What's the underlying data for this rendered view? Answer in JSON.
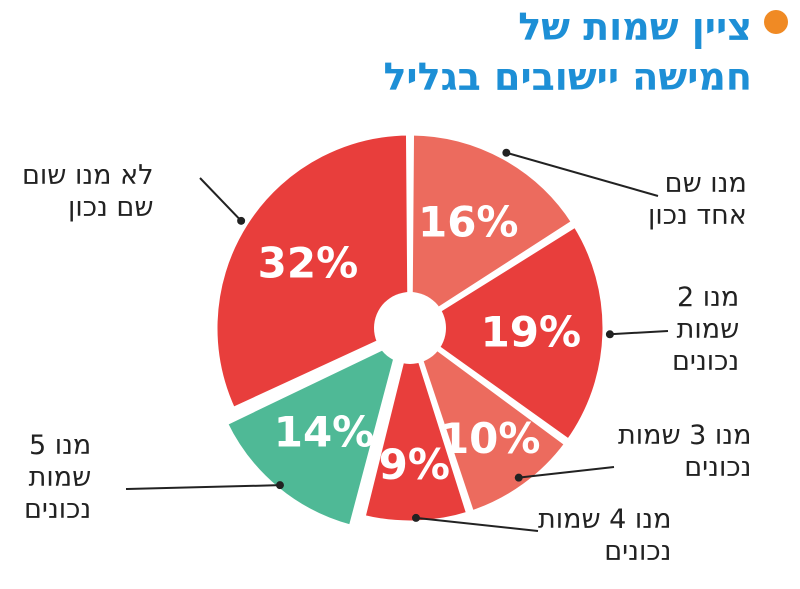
{
  "header": {
    "title_lines": [
      "ציין שמות של",
      "חמישה יישובים בגליל"
    ],
    "bullet_color": "#f08a24",
    "title_color": "#1d8fd6"
  },
  "chart_data": {
    "type": "pie",
    "title": "ציין שמות של חמישה יישובים בגליל",
    "categories": [
      "מנו שם אחד נכון",
      "מנו 2 שמות נכונים",
      "מנו 3 שמות נכונים",
      "מנו 4 שמות נכונים",
      "מנו 5 שמות נכונים",
      "לא מנו שום שם נכון"
    ],
    "values": [
      16,
      19,
      10,
      9,
      14,
      32
    ],
    "value_labels": [
      "16%",
      "19%",
      "10%",
      "9%",
      "14%",
      "32%"
    ],
    "colors": [
      "#ec6b5e",
      "#e83e3c",
      "#ec6b5e",
      "#e83e3c",
      "#4fb996",
      "#e83e3c"
    ],
    "exploded": [
      false,
      false,
      false,
      false,
      true,
      false
    ],
    "donut_hole": true,
    "legend": "callouts"
  },
  "callouts": [
    {
      "lines": [
        "מנו שם",
        "אחד נכון"
      ]
    },
    {
      "lines": [
        "מנו 2",
        "שמות",
        "נכונים"
      ]
    },
    {
      "lines": [
        "מנו 3 שמות",
        "נכונים"
      ]
    },
    {
      "lines": [
        "מנו 4 שמות",
        "נכונים"
      ]
    },
    {
      "lines": [
        "מנו 5",
        "שמות",
        "נכונים"
      ]
    },
    {
      "lines": [
        "לא מנו שום",
        "שם נכון"
      ]
    }
  ]
}
